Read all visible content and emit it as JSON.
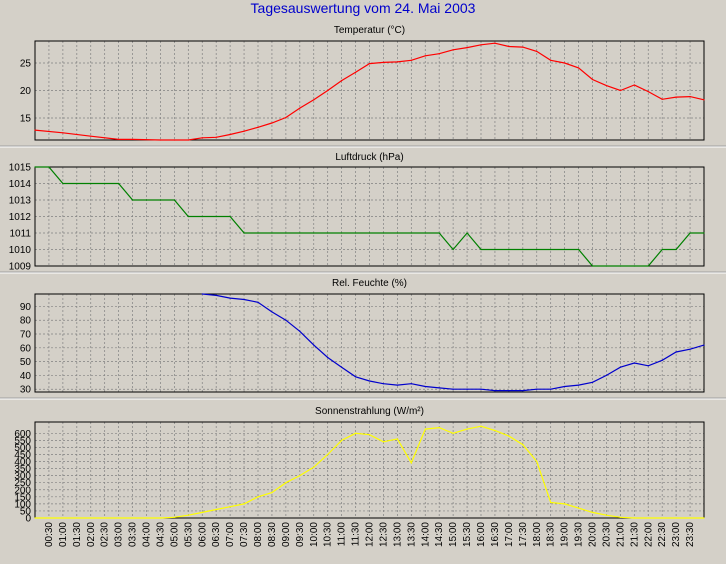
{
  "page": {
    "title": "Tagesauswertung vom 24. Mai 2003"
  },
  "x_ticks": [
    "00:30",
    "01:00",
    "01:30",
    "02:00",
    "02:30",
    "03:00",
    "03:30",
    "04:00",
    "04:30",
    "05:00",
    "05:30",
    "06:00",
    "06:30",
    "07:00",
    "07:30",
    "08:00",
    "08:30",
    "09:00",
    "09:30",
    "10:00",
    "10:30",
    "11:00",
    "11:30",
    "12:00",
    "12:30",
    "13:00",
    "13:30",
    "14:00",
    "14:30",
    "15:00",
    "15:30",
    "16:00",
    "16:30",
    "17:00",
    "17:30",
    "18:00",
    "18:30",
    "19:00",
    "19:30",
    "20:00",
    "20:30",
    "21:00",
    "21:30",
    "22:00",
    "22:30",
    "23:00",
    "23:30"
  ],
  "chart_data": [
    {
      "type": "line",
      "title": "Temperatur (°C)",
      "color": "#ff0000",
      "ylim": [
        11,
        29
      ],
      "yticks": [
        "15",
        "20",
        "25"
      ],
      "ytick_values": [
        15,
        20,
        25
      ],
      "series": [
        {
          "x": [
            0,
            2,
            4,
            6,
            7,
            9,
            10,
            11,
            12,
            13,
            14,
            15,
            16,
            17,
            18,
            19,
            20,
            21,
            22,
            23,
            24,
            25,
            26,
            27,
            28,
            29,
            30,
            31,
            32,
            33,
            34,
            35,
            36,
            37,
            38,
            39,
            40,
            41,
            42,
            43,
            44,
            45,
            46,
            47,
            48
          ],
          "values": [
            12.8,
            12.3,
            11.7,
            11.1,
            11.1,
            11.0,
            11.0,
            11.0,
            11.4,
            11.5,
            12.0,
            12.6,
            13.3,
            14.1,
            15.1,
            16.8,
            18.3,
            20.0,
            21.8,
            23.3,
            24.9,
            25.1,
            25.2,
            25.5,
            26.3,
            26.7,
            27.4,
            27.8,
            28.3,
            28.6,
            28.0,
            27.9,
            27.1,
            25.5,
            25.0,
            24.1,
            22.0,
            20.9,
            20.0,
            21.0,
            19.8,
            18.4,
            18.8,
            18.9,
            18.3
          ]
        }
      ]
    },
    {
      "type": "line",
      "title": "Luftdruck (hPa)",
      "color": "#008000",
      "ylim": [
        1009,
        1015
      ],
      "yticks": [
        "1009",
        "1010",
        "1011",
        "1012",
        "1013",
        "1014",
        "1015"
      ],
      "ytick_values": [
        1009,
        1010,
        1011,
        1012,
        1013,
        1014,
        1015
      ],
      "series": [
        {
          "x": [
            0,
            1,
            2,
            3,
            4,
            5,
            6,
            7,
            8,
            9,
            10,
            11,
            12,
            13,
            14,
            15,
            16,
            17,
            18,
            19,
            20,
            21,
            22,
            23,
            24,
            25,
            26,
            27,
            28,
            29,
            30,
            31,
            32,
            33,
            34,
            35,
            36,
            37,
            38,
            39,
            40,
            41,
            42,
            43,
            44,
            45,
            46,
            47,
            48
          ],
          "values": [
            1015,
            1015,
            1014,
            1014,
            1014,
            1014,
            1014,
            1013,
            1013,
            1013,
            1013,
            1012,
            1012,
            1012,
            1012,
            1011,
            1011,
            1011,
            1011,
            1011,
            1011,
            1011,
            1011,
            1011,
            1011,
            1011,
            1011,
            1011,
            1011,
            1011,
            1010,
            1011,
            1010,
            1010,
            1010,
            1010,
            1010,
            1010,
            1010,
            1010,
            1009,
            1009,
            1009,
            1009,
            1009,
            1010,
            1010,
            1011,
            1011
          ]
        }
      ]
    },
    {
      "type": "line",
      "title": "Rel. Feuchte (%)",
      "color": "#0000cc",
      "ylim": [
        28,
        99
      ],
      "yticks": [
        "30",
        "40",
        "50",
        "60",
        "70",
        "80",
        "90"
      ],
      "ytick_values": [
        30,
        40,
        50,
        60,
        70,
        80,
        90
      ],
      "series": [
        {
          "x": [
            12,
            13,
            14,
            15,
            16,
            17,
            18,
            19,
            20,
            21,
            22,
            23,
            24,
            25,
            26,
            27,
            28,
            29,
            30,
            31,
            32,
            33,
            34,
            35,
            36,
            37,
            38,
            39,
            40,
            41,
            42,
            43,
            44,
            45,
            46,
            47,
            48
          ],
          "values": [
            99,
            98,
            96,
            95,
            93,
            86,
            80,
            72,
            62,
            53,
            46,
            39,
            36,
            34,
            33,
            34,
            32,
            31,
            30,
            30,
            30,
            29,
            29,
            29,
            30,
            30,
            32,
            33,
            35,
            40,
            46,
            49,
            47,
            51,
            57,
            59,
            62
          ]
        }
      ]
    },
    {
      "type": "line",
      "title": "Sonnenstrahlung (W/m²)",
      "color": "#ffff00",
      "ylim": [
        0,
        680
      ],
      "yticks": [
        "0",
        "50",
        "100",
        "150",
        "200",
        "250",
        "300",
        "350",
        "400",
        "450",
        "500",
        "550",
        "600"
      ],
      "ytick_values": [
        0,
        50,
        100,
        150,
        200,
        250,
        300,
        350,
        400,
        450,
        500,
        550,
        600
      ],
      "series": [
        {
          "x": [
            0,
            9,
            10,
            11,
            12,
            13,
            14,
            15,
            16,
            17,
            18,
            19,
            20,
            21,
            22,
            23,
            24,
            25,
            26,
            27,
            28,
            29,
            30,
            31,
            32,
            33,
            34,
            35,
            36,
            37,
            38,
            39,
            40,
            41,
            42,
            43,
            48
          ],
          "values": [
            0,
            0,
            5,
            20,
            40,
            60,
            80,
            100,
            150,
            180,
            250,
            300,
            360,
            450,
            550,
            600,
            590,
            540,
            560,
            390,
            630,
            640,
            600,
            630,
            650,
            620,
            580,
            520,
            400,
            110,
            100,
            70,
            40,
            20,
            5,
            0,
            0
          ]
        }
      ]
    }
  ]
}
